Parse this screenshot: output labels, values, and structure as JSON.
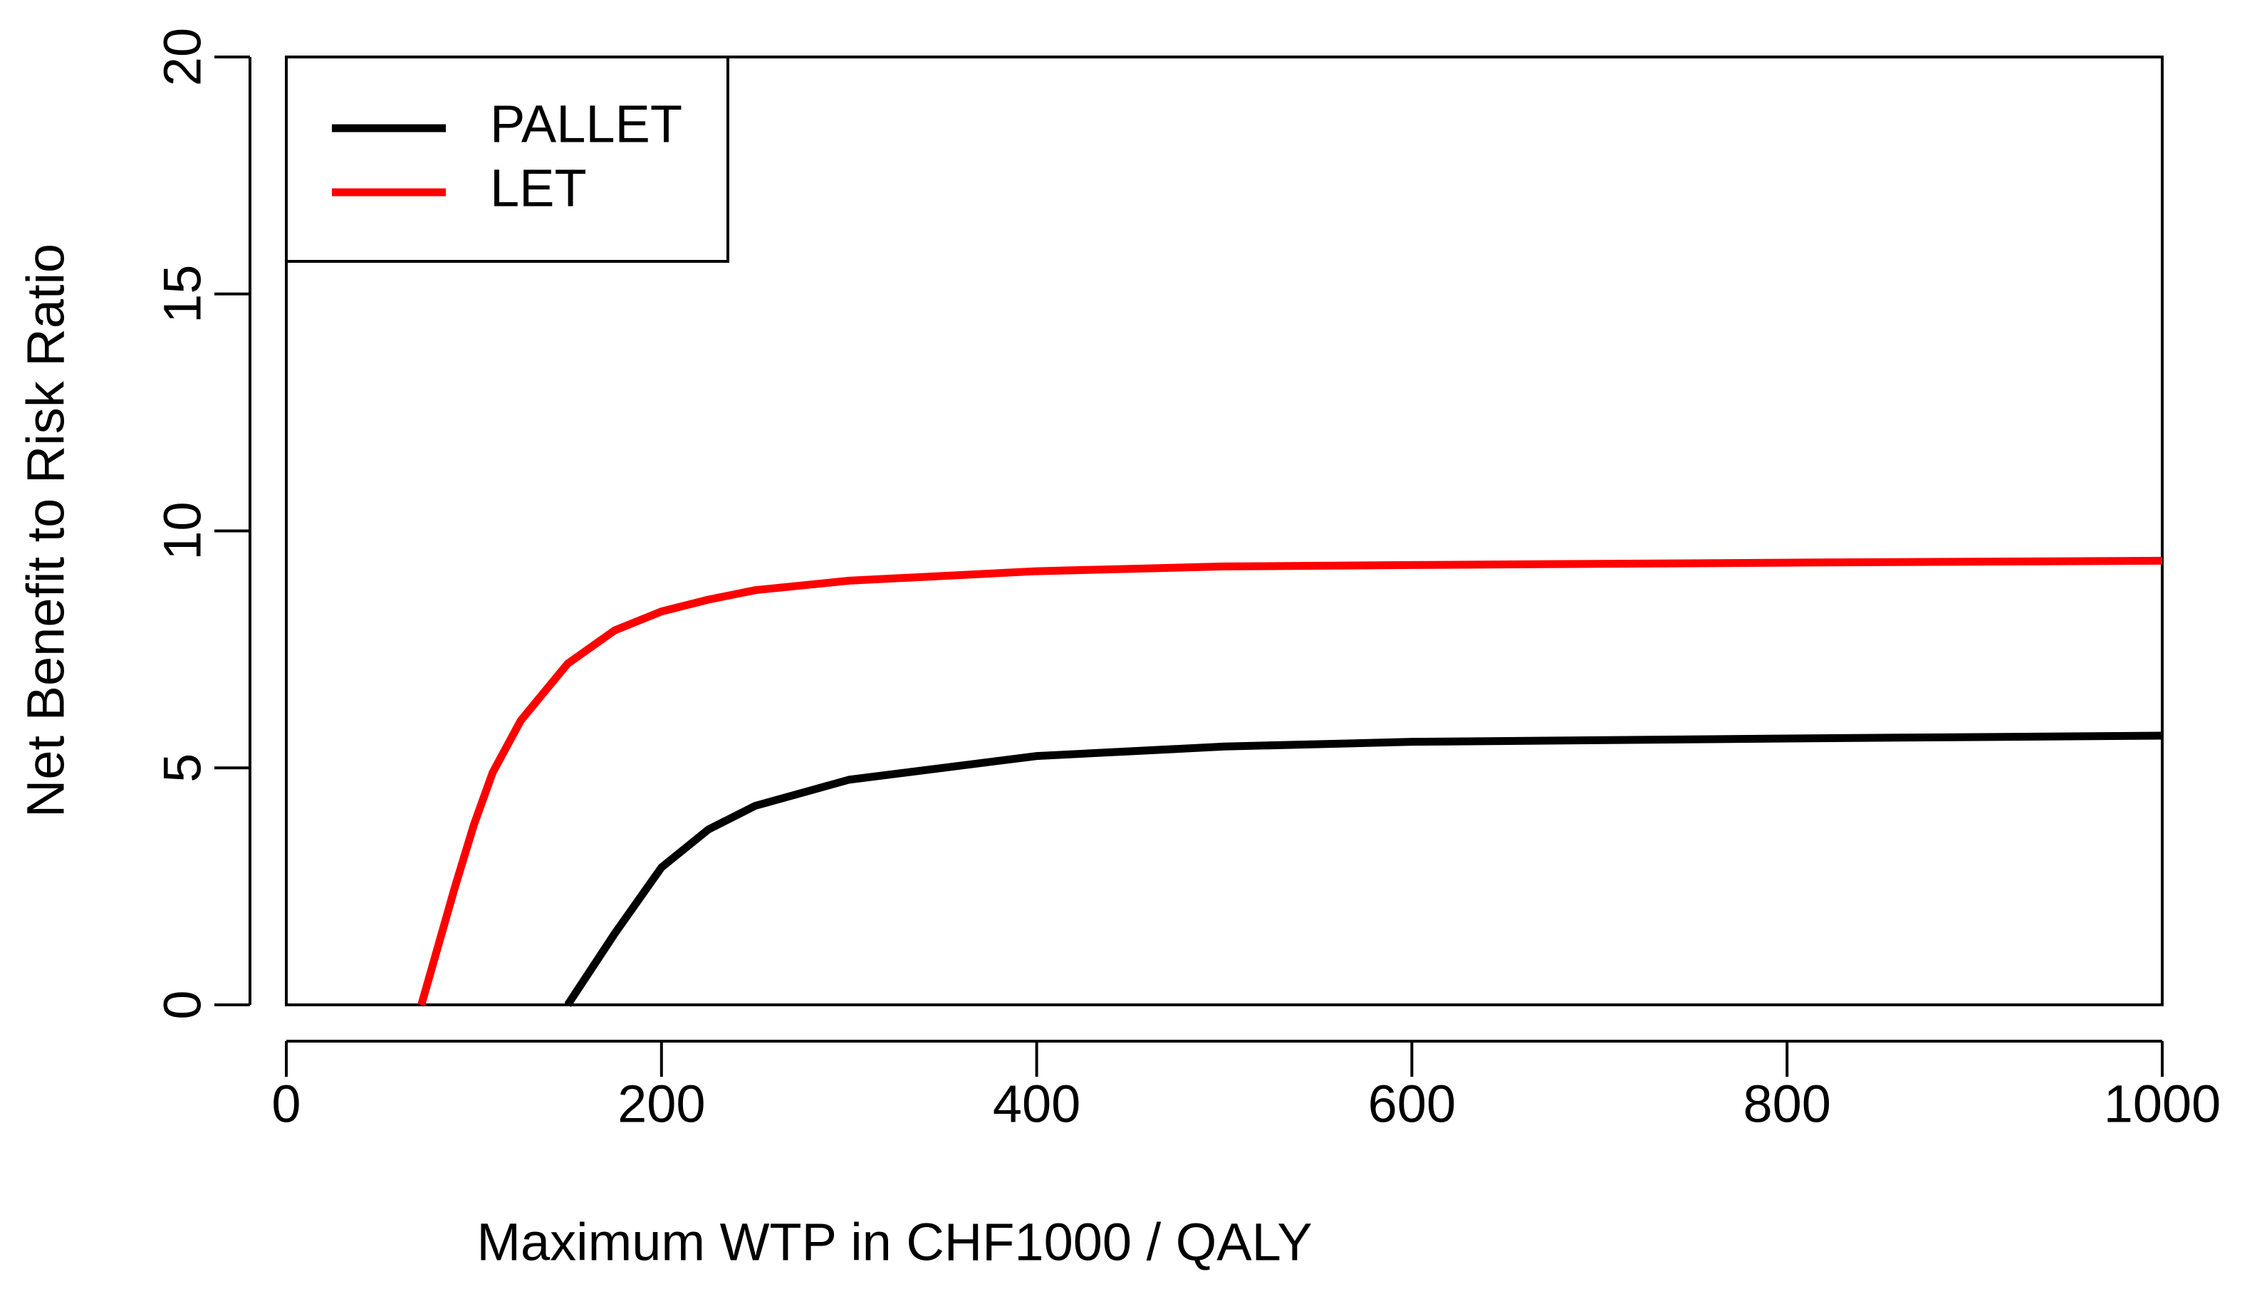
{
  "chart_data": {
    "type": "line",
    "x_label": "Maximum WTP in CHF1000 / QALY",
    "y_label": "Net Benefit to Risk Ratio",
    "x": [
      72,
      90,
      100,
      110,
      125,
      150,
      175,
      200,
      225,
      250,
      300,
      400,
      500,
      600,
      800,
      1000
    ],
    "series": [
      {
        "name": "PALLET",
        "color": "#000000",
        "values": [
          null,
          null,
          null,
          null,
          null,
          0,
          1.5,
          2.9,
          3.7,
          4.2,
          4.75,
          5.25,
          5.45,
          5.55,
          5.62,
          5.68
        ]
      },
      {
        "name": "LET",
        "color": "#ff0000",
        "values": [
          0,
          2.5,
          3.8,
          4.9,
          6.0,
          7.2,
          7.9,
          8.3,
          8.55,
          8.75,
          8.95,
          9.15,
          9.25,
          9.28,
          9.33,
          9.37
        ]
      }
    ],
    "xlim": [
      0,
      1000
    ],
    "ylim": [
      0,
      20
    ],
    "xticks": [
      0,
      200,
      400,
      600,
      800,
      1000
    ],
    "yticks": [
      0,
      5,
      10,
      15,
      20
    ],
    "legend": "top-left"
  }
}
